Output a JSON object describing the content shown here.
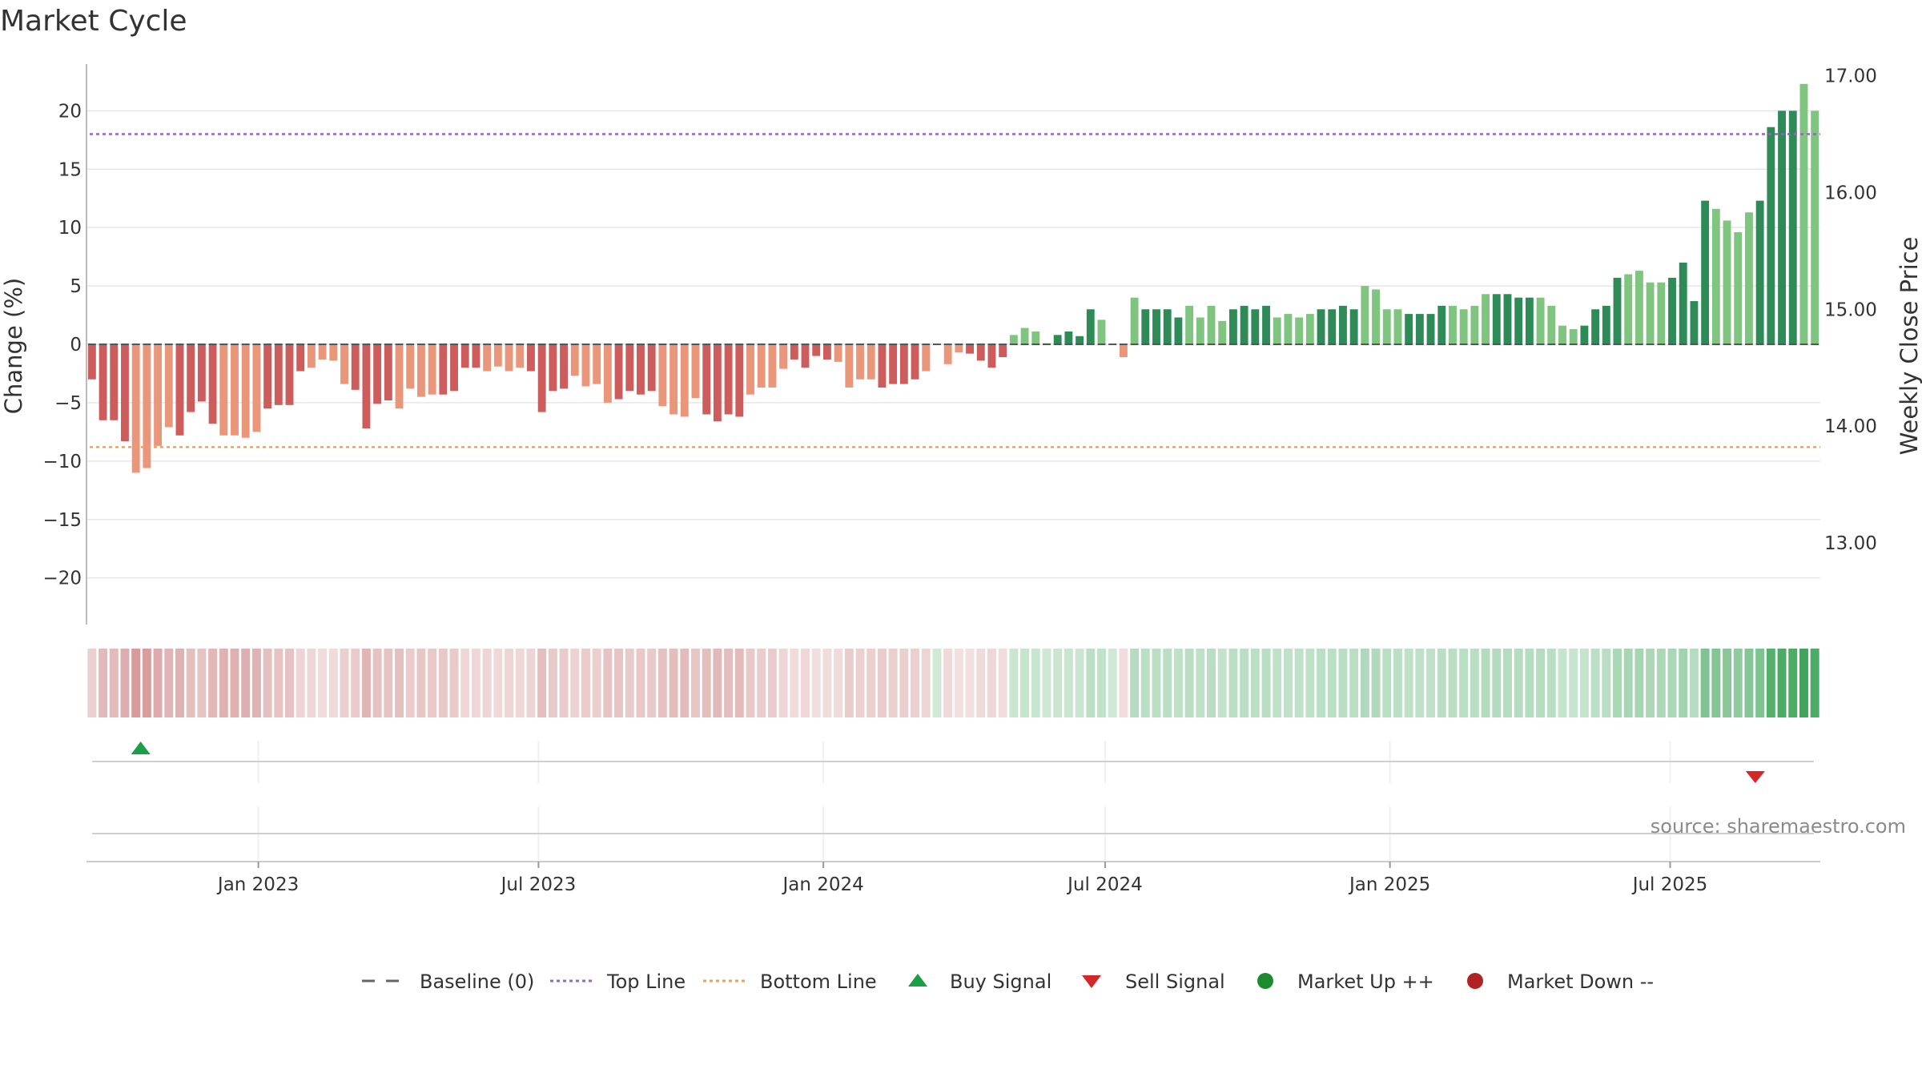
{
  "chart_data": {
    "type": "bar",
    "title": "Market Cycle",
    "ylabel": "Change (%)",
    "y2label": "Weekly Close Price",
    "ylim": [
      -24,
      24
    ],
    "y2lim": [
      12.3,
      17.1
    ],
    "yticks": [
      "−20",
      "−15",
      "−10",
      "−5",
      "0",
      "5",
      "10",
      "15",
      "20"
    ],
    "yticks_values": [
      -20,
      -15,
      -10,
      -5,
      0,
      5,
      10,
      15,
      20
    ],
    "y2ticks": [
      "13.00",
      "14.00",
      "15.00",
      "16.00",
      "17.00"
    ],
    "y2ticks_values": [
      13,
      14,
      15,
      16,
      17
    ],
    "x_start": "2022-09-12",
    "x_end": "2025-10-06",
    "xticks": [
      {
        "date": "2023-01-01",
        "label": "Jan 2023"
      },
      {
        "date": "2023-07-01",
        "label": "Jul 2023"
      },
      {
        "date": "2024-01-01",
        "label": "Jan 2024"
      },
      {
        "date": "2024-07-01",
        "label": "Jul 2024"
      },
      {
        "date": "2025-01-01",
        "label": "Jan 2025"
      },
      {
        "date": "2025-07-01",
        "label": "Jul 2025"
      }
    ],
    "top_line": 18,
    "bottom_line": -8.8,
    "baseline": 0,
    "values": [
      -3,
      -6.5,
      -6.5,
      -8.3,
      -11,
      -10.6,
      -8.7,
      -7.1,
      -7.8,
      -5.8,
      -4.9,
      -6.8,
      -7.8,
      -7.8,
      -8,
      -7.5,
      -5.5,
      -5.2,
      -5.2,
      -2.3,
      -2,
      -1.3,
      -1.4,
      -3.4,
      -3.9,
      -7.2,
      -5.1,
      -4.8,
      -5.5,
      -3.8,
      -4.5,
      -4.3,
      -4.3,
      -4,
      -2,
      -2,
      -2.3,
      -1.9,
      -2.3,
      -2,
      -2.3,
      -5.8,
      -4,
      -3.8,
      -2.7,
      -3.6,
      -3.4,
      -5,
      -4.7,
      -4,
      -4.3,
      -4,
      -5.3,
      -6,
      -6.2,
      -4.6,
      -6,
      -6.6,
      -6,
      -6.2,
      -4.3,
      -3.7,
      -3.7,
      -2.1,
      -1.3,
      -2,
      -1,
      -1.3,
      -1.5,
      -3.7,
      -3,
      -3,
      -3.7,
      -3.4,
      -3.4,
      -3,
      -2.3,
      0,
      -1.7,
      -0.7,
      -0.8,
      -1.4,
      -2,
      -1.1,
      0.8,
      1.4,
      1.1,
      0.1,
      0.8,
      1.1,
      0.7,
      3,
      2.1,
      0,
      -1.1,
      4,
      3,
      3,
      3,
      2.3,
      3.3,
      2.3,
      3.3,
      2,
      3,
      3.3,
      3,
      3.3,
      2.3,
      2.6,
      2.3,
      2.6,
      3,
      3,
      3.3,
      3,
      5,
      4.7,
      3,
      3,
      2.6,
      2.6,
      2.6,
      3.3,
      3.3,
      3,
      3.3,
      4.3,
      4.3,
      4.3,
      4,
      4,
      4,
      3.3,
      1.6,
      1.3,
      1.6,
      3,
      3.3,
      5.7,
      6,
      6.3,
      5.3,
      5.3,
      5.7,
      7,
      3.7,
      12.3,
      11.6,
      10.6,
      9.6,
      11.3,
      12.3,
      18.6,
      20,
      20,
      22.3,
      20
    ],
    "signals": [
      {
        "type": "buy",
        "date": "2022-10-17"
      },
      {
        "type": "sell",
        "date": "2025-08-25"
      }
    ],
    "source": "source: sharemaestro.com",
    "legend": {
      "position": "bottom",
      "entries": [
        {
          "label": "Baseline (0)",
          "style": "dashed",
          "color": "#666666"
        },
        {
          "label": "Top Line",
          "style": "dotted",
          "color": "#9467bd"
        },
        {
          "label": "Bottom Line",
          "style": "dotted",
          "color": "#f2a055"
        },
        {
          "label": "Buy Signal",
          "style": "triangle-up",
          "color": "#1a9e46"
        },
        {
          "label": "Sell Signal",
          "style": "triangle-down",
          "color": "#d62728"
        },
        {
          "label": "Market Up ++",
          "style": "circle",
          "color": "#1e8a2e"
        },
        {
          "label": "Market Down --",
          "style": "circle",
          "color": "#b22222"
        }
      ]
    },
    "colors": {
      "up_dark": "#2e8b57",
      "up_light": "#7fc47f",
      "down_dark": "#cd5c5c",
      "down_light": "#e9967a",
      "top_line": "#9467bd",
      "bottom_line": "#f2a055",
      "grid": "#e6e6e6"
    }
  }
}
